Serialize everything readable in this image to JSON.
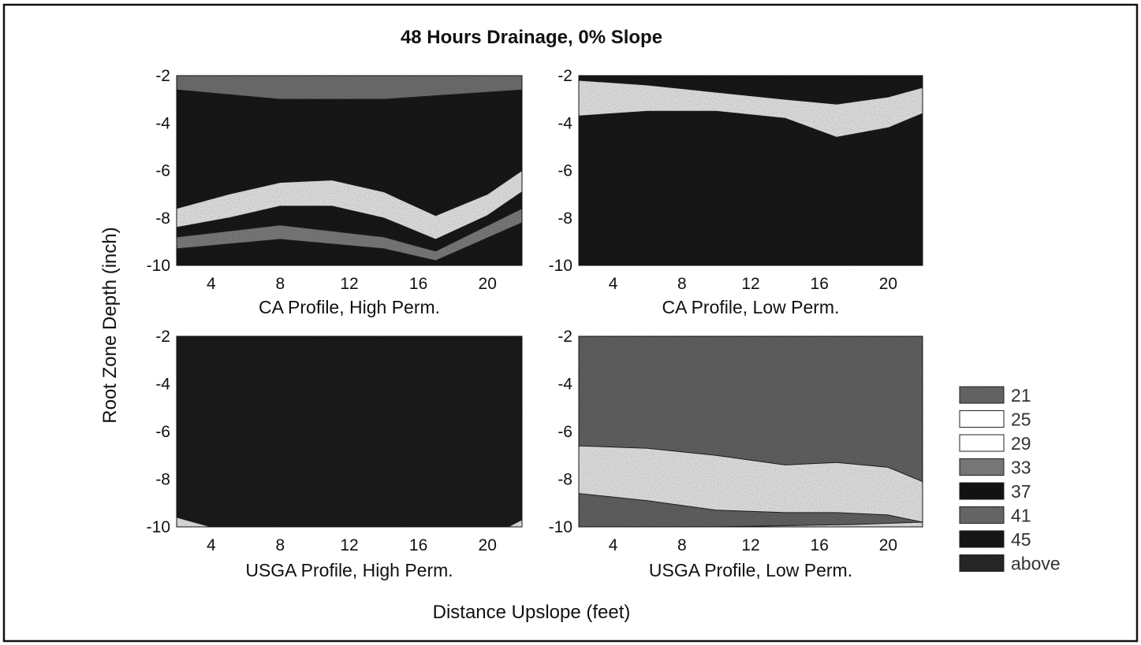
{
  "chart_data": {
    "type": "contour",
    "title": "48 Hours Drainage, 0% Slope",
    "xlabel": "Distance Upslope (feet)",
    "ylabel": "Root Zone Depth (inch)",
    "xlim": [
      2,
      22
    ],
    "ylim": [
      -10,
      -2
    ],
    "x_ticks": [
      "4",
      "8",
      "12",
      "16",
      "20"
    ],
    "y_ticks": [
      "-2",
      "-4",
      "-6",
      "-8",
      "-10"
    ],
    "legend": {
      "placement": "right",
      "levels": [
        {
          "label": "21",
          "color": "#777777"
        },
        {
          "label": "25",
          "color": "#ffffff"
        },
        {
          "label": "29",
          "color": "#ffffff"
        },
        {
          "label": "33",
          "color": "#8f8f8f"
        },
        {
          "label": "37",
          "color": "#161616"
        },
        {
          "label": "41",
          "color": "#7a7a7a"
        },
        {
          "label": "45",
          "color": "#1a1a1a"
        },
        {
          "label": "above",
          "color": "#2e2e2e"
        }
      ]
    },
    "panels": [
      {
        "subtitle": "CA Profile, High Perm.",
        "background": "#1a1a1a",
        "bands": [
          {
            "level": "33",
            "color": "#7d7d7d",
            "upper": [
              [
                2,
                -2.0
              ],
              [
                22,
                -2.0
              ]
            ],
            "lower": [
              [
                2,
                -2.6
              ],
              [
                8,
                -3.0
              ],
              [
                14,
                -3.0
              ],
              [
                22,
                -2.6
              ]
            ]
          },
          {
            "level": "25",
            "color": "#ffffff",
            "upper": [
              [
                2,
                -7.6
              ],
              [
                5,
                -7.0
              ],
              [
                8,
                -6.5
              ],
              [
                11,
                -6.4
              ],
              [
                14,
                -6.9
              ],
              [
                17,
                -7.9
              ],
              [
                20,
                -7.0
              ],
              [
                22,
                -6.0
              ]
            ],
            "lower": [
              [
                2,
                -8.4
              ],
              [
                5,
                -8.0
              ],
              [
                8,
                -7.5
              ],
              [
                11,
                -7.5
              ],
              [
                14,
                -8.0
              ],
              [
                17,
                -8.9
              ],
              [
                20,
                -7.9
              ],
              [
                22,
                -6.9
              ]
            ]
          },
          {
            "level": "33",
            "color": "#8a8a8a",
            "upper": [
              [
                2,
                -8.8
              ],
              [
                8,
                -8.3
              ],
              [
                14,
                -8.8
              ],
              [
                17,
                -9.4
              ],
              [
                22,
                -7.6
              ]
            ],
            "lower": [
              [
                2,
                -9.3
              ],
              [
                8,
                -8.9
              ],
              [
                14,
                -9.3
              ],
              [
                17,
                -9.8
              ],
              [
                22,
                -8.2
              ]
            ]
          }
        ]
      },
      {
        "subtitle": "CA Profile, Low Perm.",
        "background": "#1a1a1a",
        "bands": [
          {
            "level": "25",
            "color": "#ffffff",
            "upper": [
              [
                2,
                -2.2
              ],
              [
                6,
                -2.4
              ],
              [
                10,
                -2.7
              ],
              [
                14,
                -3.0
              ],
              [
                17,
                -3.2
              ],
              [
                20,
                -2.9
              ],
              [
                22,
                -2.5
              ]
            ],
            "lower": [
              [
                2,
                -3.7
              ],
              [
                6,
                -3.5
              ],
              [
                10,
                -3.5
              ],
              [
                14,
                -3.8
              ],
              [
                17,
                -4.6
              ],
              [
                20,
                -4.2
              ],
              [
                22,
                -3.6
              ]
            ]
          }
        ]
      },
      {
        "subtitle": "USGA Profile, High Perm.",
        "background": "#1e1e1e",
        "bands": [
          {
            "level": "25",
            "color": "#ffffff",
            "upper": [
              [
                2,
                -9.6
              ],
              [
                3,
                -9.8
              ],
              [
                4,
                -10.0
              ]
            ],
            "lower": [
              [
                2,
                -10.0
              ],
              [
                4,
                -10.0
              ]
            ]
          },
          {
            "level": "25",
            "color": "#ffffff",
            "upper": [
              [
                21.2,
                -10.0
              ],
              [
                22,
                -9.7
              ]
            ],
            "lower": [
              [
                21.2,
                -10.0
              ],
              [
                22,
                -10.0
              ]
            ]
          }
        ]
      },
      {
        "subtitle": "USGA Profile, Low Perm.",
        "background": "#6e6e6e",
        "bands": [
          {
            "level": "25",
            "color": "#ffffff",
            "upper": [
              [
                2,
                -6.6
              ],
              [
                6,
                -6.7
              ],
              [
                10,
                -7.0
              ],
              [
                14,
                -7.4
              ],
              [
                17,
                -7.3
              ],
              [
                20,
                -7.5
              ],
              [
                22,
                -8.1
              ]
            ],
            "lower": [
              [
                2,
                -8.6
              ],
              [
                6,
                -8.9
              ],
              [
                10,
                -9.3
              ],
              [
                14,
                -9.4
              ],
              [
                17,
                -9.4
              ],
              [
                20,
                -9.5
              ],
              [
                22,
                -9.8
              ]
            ]
          },
          {
            "level": "25",
            "color": "#ffffff",
            "upper": [
              [
                2,
                -10.0
              ],
              [
                6,
                -10.0
              ],
              [
                10,
                -10.0
              ],
              [
                14,
                -9.95
              ],
              [
                18,
                -9.9
              ],
              [
                22,
                -9.8
              ]
            ],
            "lower": [
              [
                2,
                -10.0
              ],
              [
                22,
                -10.0
              ]
            ]
          }
        ]
      }
    ]
  }
}
